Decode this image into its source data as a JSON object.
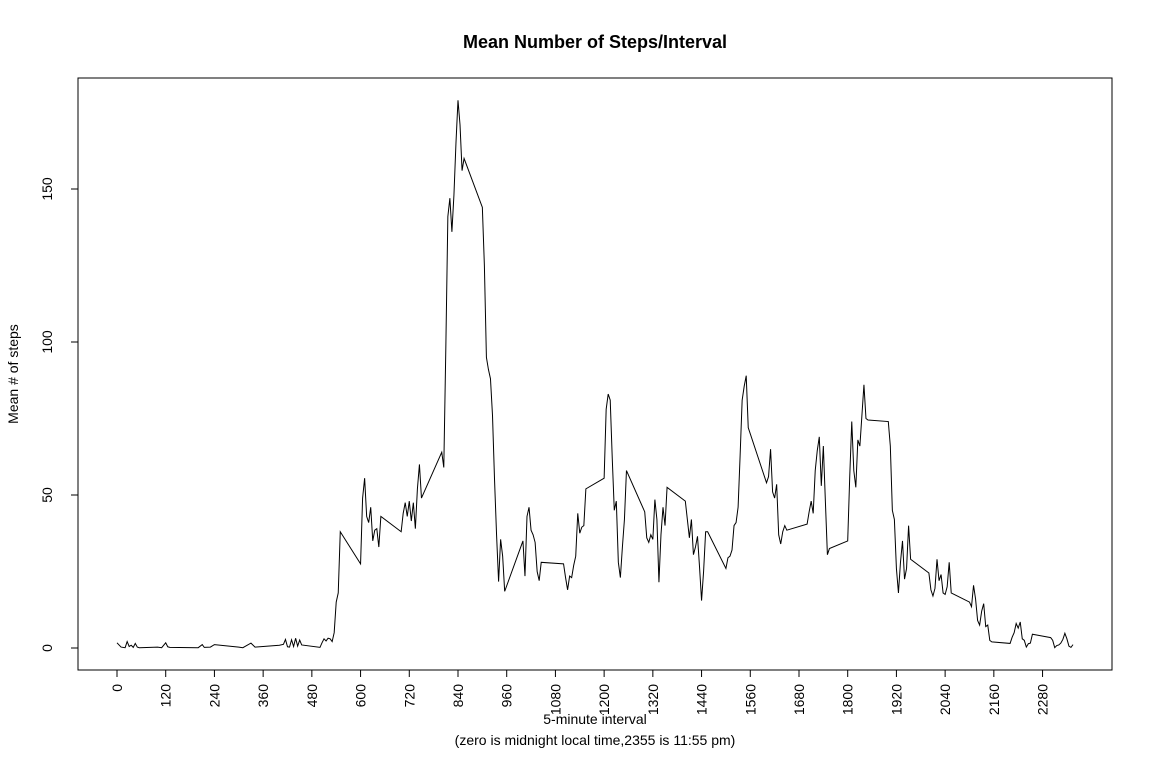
{
  "chart_data": {
    "type": "line",
    "title": "Mean Number of Steps/Interval",
    "xlabel_line1": "5-minute interval",
    "xlabel_line2": "(zero is midnight local time,2355 is 11:55 pm)",
    "ylabel": "Mean # of steps",
    "xlim": [
      0,
      2355
    ],
    "ylim": [
      0,
      180
    ],
    "x_ticks": [
      0,
      120,
      240,
      360,
      480,
      600,
      720,
      840,
      960,
      1080,
      1200,
      1320,
      1440,
      1560,
      1680,
      1800,
      1920,
      2040,
      2160,
      2280
    ],
    "x_tick_labels": [
      "0",
      "120",
      "240",
      "360",
      "480",
      "600",
      "720",
      "840",
      "960",
      "1080",
      "1200",
      "1320",
      "1440",
      "1560",
      "1680",
      "1800",
      "1920",
      "2040",
      "2160",
      "2280"
    ],
    "y_ticks": [
      0,
      50,
      100,
      150
    ],
    "y_tick_labels": [
      "0",
      "50",
      "100",
      "150"
    ],
    "grid": false,
    "legend": "none",
    "series": [
      {
        "color": "#000000",
        "points": [
          [
            0,
            1.7
          ],
          [
            10,
            0.3
          ],
          [
            20,
            0.1
          ],
          [
            25,
            2.1
          ],
          [
            30,
            0.5
          ],
          [
            35,
            0.9
          ],
          [
            40,
            0.2
          ],
          [
            45,
            1.5
          ],
          [
            50,
            0.3
          ],
          [
            55,
            0.1
          ],
          [
            100,
            0.3
          ],
          [
            110,
            0.1
          ],
          [
            120,
            1.7
          ],
          [
            125,
            0.4
          ],
          [
            130,
            0.2
          ],
          [
            200,
            0.1
          ],
          [
            210,
            1.1
          ],
          [
            215,
            0.2
          ],
          [
            230,
            0.3
          ],
          [
            240,
            1.1
          ],
          [
            300,
            0.3
          ],
          [
            310,
            0.1
          ],
          [
            330,
            1.6
          ],
          [
            340,
            0.3
          ],
          [
            400,
            0.9
          ],
          [
            410,
            1.2
          ],
          [
            415,
            2.8
          ],
          [
            420,
            0.4
          ],
          [
            425,
            0.3
          ],
          [
            430,
            2.7
          ],
          [
            435,
            0.5
          ],
          [
            440,
            3.2
          ],
          [
            445,
            0.6
          ],
          [
            450,
            2.6
          ],
          [
            455,
            1.0
          ],
          [
            500,
            0.2
          ],
          [
            505,
            1.7
          ],
          [
            510,
            3.0
          ],
          [
            515,
            2.3
          ],
          [
            520,
            3.2
          ],
          [
            525,
            3.0
          ],
          [
            530,
            2.1
          ],
          [
            535,
            5.0
          ],
          [
            540,
            15.0
          ],
          [
            545,
            18.0
          ],
          [
            550,
            38.0
          ],
          [
            600,
            27.5
          ],
          [
            605,
            49.0
          ],
          [
            610,
            55.5
          ],
          [
            615,
            43.0
          ],
          [
            620,
            41.0
          ],
          [
            625,
            46.0
          ],
          [
            630,
            35.0
          ],
          [
            635,
            38.5
          ],
          [
            640,
            39.0
          ],
          [
            645,
            33.0
          ],
          [
            650,
            43.0
          ],
          [
            700,
            38.0
          ],
          [
            705,
            44.0
          ],
          [
            710,
            47.5
          ],
          [
            715,
            43.0
          ],
          [
            720,
            48.0
          ],
          [
            725,
            41.5
          ],
          [
            730,
            47.5
          ],
          [
            735,
            39.0
          ],
          [
            740,
            52.0
          ],
          [
            745,
            60.0
          ],
          [
            750,
            49.0
          ],
          [
            800,
            64.0
          ],
          [
            805,
            59.0
          ],
          [
            810,
            98.0
          ],
          [
            815,
            141.0
          ],
          [
            820,
            147.0
          ],
          [
            825,
            136.0
          ],
          [
            830,
            148.0
          ],
          [
            835,
            165.0
          ],
          [
            840,
            179.0
          ],
          [
            845,
            171.0
          ],
          [
            850,
            156.0
          ],
          [
            855,
            160.0
          ],
          [
            900,
            144.0
          ],
          [
            905,
            125.0
          ],
          [
            910,
            95.0
          ],
          [
            915,
            91.0
          ],
          [
            920,
            88.0
          ],
          [
            925,
            76.0
          ],
          [
            930,
            55.0
          ],
          [
            935,
            37.0
          ],
          [
            940,
            21.7
          ],
          [
            945,
            35.5
          ],
          [
            950,
            30.0
          ],
          [
            955,
            18.5
          ],
          [
            1000,
            35.0
          ],
          [
            1005,
            23.5
          ],
          [
            1010,
            43.0
          ],
          [
            1015,
            46.0
          ],
          [
            1020,
            38.5
          ],
          [
            1025,
            37.0
          ],
          [
            1030,
            34.5
          ],
          [
            1035,
            25.0
          ],
          [
            1040,
            22.0
          ],
          [
            1045,
            28.0
          ],
          [
            1100,
            27.5
          ],
          [
            1105,
            23.0
          ],
          [
            1110,
            19.0
          ],
          [
            1115,
            23.5
          ],
          [
            1120,
            23.0
          ],
          [
            1125,
            27.0
          ],
          [
            1130,
            30.0
          ],
          [
            1135,
            44.0
          ],
          [
            1140,
            37.5
          ],
          [
            1145,
            39.5
          ],
          [
            1150,
            40.0
          ],
          [
            1155,
            52.0
          ],
          [
            1200,
            55.5
          ],
          [
            1205,
            78.0
          ],
          [
            1210,
            83.0
          ],
          [
            1215,
            81.0
          ],
          [
            1220,
            62.0
          ],
          [
            1225,
            45.0
          ],
          [
            1230,
            48.0
          ],
          [
            1235,
            28.0
          ],
          [
            1240,
            23.0
          ],
          [
            1245,
            33.0
          ],
          [
            1250,
            42.0
          ],
          [
            1255,
            58.0
          ],
          [
            1300,
            44.5
          ],
          [
            1305,
            36.0
          ],
          [
            1310,
            34.5
          ],
          [
            1315,
            37.0
          ],
          [
            1320,
            35.5
          ],
          [
            1325,
            48.5
          ],
          [
            1330,
            42.0
          ],
          [
            1335,
            21.5
          ],
          [
            1340,
            37.0
          ],
          [
            1345,
            46.0
          ],
          [
            1350,
            40.0
          ],
          [
            1355,
            52.5
          ],
          [
            1400,
            48.0
          ],
          [
            1405,
            42.0
          ],
          [
            1410,
            36.0
          ],
          [
            1415,
            42.0
          ],
          [
            1420,
            30.5
          ],
          [
            1425,
            33.0
          ],
          [
            1430,
            36.5
          ],
          [
            1435,
            26.5
          ],
          [
            1440,
            15.5
          ],
          [
            1445,
            25.0
          ],
          [
            1450,
            38.0
          ],
          [
            1455,
            38.0
          ],
          [
            1500,
            26.0
          ],
          [
            1505,
            29.5
          ],
          [
            1510,
            30.0
          ],
          [
            1515,
            32.0
          ],
          [
            1520,
            40.0
          ],
          [
            1525,
            41.0
          ],
          [
            1530,
            46.0
          ],
          [
            1535,
            63.0
          ],
          [
            1540,
            81.0
          ],
          [
            1545,
            85.5
          ],
          [
            1550,
            89.0
          ],
          [
            1555,
            72.0
          ],
          [
            1600,
            54.0
          ],
          [
            1605,
            56.0
          ],
          [
            1610,
            65.0
          ],
          [
            1615,
            51.0
          ],
          [
            1620,
            49.0
          ],
          [
            1625,
            53.5
          ],
          [
            1630,
            37.0
          ],
          [
            1635,
            34.0
          ],
          [
            1640,
            38.0
          ],
          [
            1645,
            40.0
          ],
          [
            1650,
            38.5
          ],
          [
            1700,
            40.5
          ],
          [
            1705,
            44.5
          ],
          [
            1710,
            48.0
          ],
          [
            1715,
            44.0
          ],
          [
            1720,
            58.0
          ],
          [
            1725,
            64.5
          ],
          [
            1730,
            69.0
          ],
          [
            1735,
            53.0
          ],
          [
            1740,
            66.0
          ],
          [
            1745,
            48.0
          ],
          [
            1750,
            30.5
          ],
          [
            1755,
            32.5
          ],
          [
            1800,
            35.0
          ],
          [
            1805,
            56.0
          ],
          [
            1810,
            74.0
          ],
          [
            1815,
            58.0
          ],
          [
            1820,
            52.5
          ],
          [
            1825,
            68.0
          ],
          [
            1830,
            66.0
          ],
          [
            1835,
            76.0
          ],
          [
            1840,
            86.0
          ],
          [
            1845,
            75.0
          ],
          [
            1850,
            74.5
          ],
          [
            1900,
            74.0
          ],
          [
            1905,
            66.0
          ],
          [
            1910,
            45.0
          ],
          [
            1915,
            42.0
          ],
          [
            1920,
            26.0
          ],
          [
            1925,
            18.0
          ],
          [
            1930,
            28.0
          ],
          [
            1935,
            35.0
          ],
          [
            1940,
            22.5
          ],
          [
            1945,
            26.0
          ],
          [
            1950,
            40.0
          ],
          [
            1955,
            29.0
          ],
          [
            2000,
            24.5
          ],
          [
            2005,
            19.0
          ],
          [
            2010,
            17.0
          ],
          [
            2015,
            19.5
          ],
          [
            2020,
            29.0
          ],
          [
            2025,
            22.0
          ],
          [
            2030,
            24.0
          ],
          [
            2035,
            18.0
          ],
          [
            2040,
            17.5
          ],
          [
            2045,
            20.0
          ],
          [
            2050,
            28.0
          ],
          [
            2055,
            18.0
          ],
          [
            2100,
            15.0
          ],
          [
            2105,
            13.5
          ],
          [
            2110,
            20.5
          ],
          [
            2115,
            16.0
          ],
          [
            2120,
            9.0
          ],
          [
            2125,
            7.5
          ],
          [
            2130,
            12.0
          ],
          [
            2135,
            14.5
          ],
          [
            2140,
            7.0
          ],
          [
            2145,
            7.5
          ],
          [
            2150,
            2.5
          ],
          [
            2155,
            2.0
          ],
          [
            2200,
            1.5
          ],
          [
            2205,
            3.5
          ],
          [
            2210,
            5.0
          ],
          [
            2215,
            8.0
          ],
          [
            2220,
            6.5
          ],
          [
            2225,
            8.5
          ],
          [
            2230,
            3.0
          ],
          [
            2235,
            2.5
          ],
          [
            2240,
            0.3
          ],
          [
            2245,
            1.4
          ],
          [
            2250,
            1.6
          ],
          [
            2255,
            4.5
          ],
          [
            2300,
            3.4
          ],
          [
            2305,
            2.5
          ],
          [
            2310,
            0.1
          ],
          [
            2315,
            0.8
          ],
          [
            2320,
            1.0
          ],
          [
            2325,
            1.6
          ],
          [
            2330,
            2.8
          ],
          [
            2335,
            4.8
          ],
          [
            2340,
            3.0
          ],
          [
            2345,
            0.6
          ],
          [
            2350,
            0.2
          ],
          [
            2355,
            1.1
          ]
        ]
      }
    ]
  }
}
